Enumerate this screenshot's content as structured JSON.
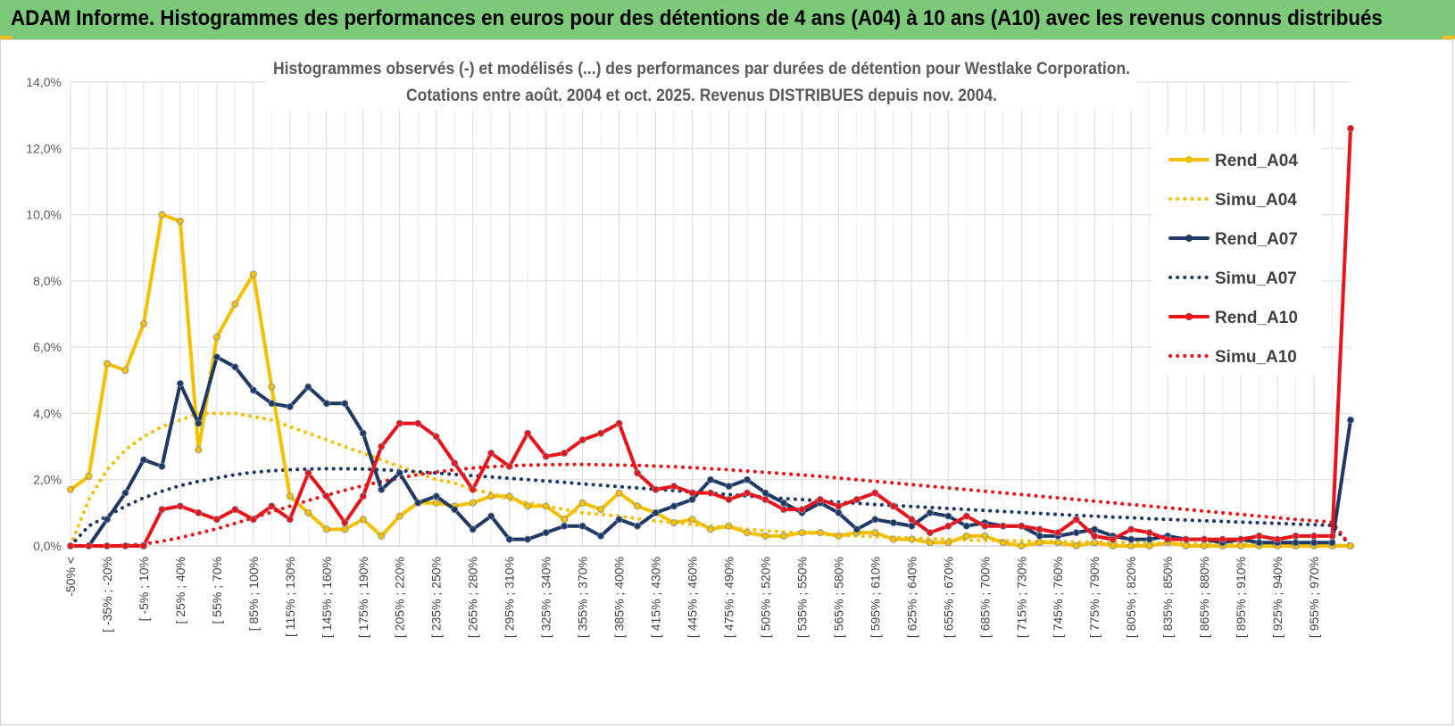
{
  "banner": {
    "title": "ADAM Informe. Histogrammes des performances en euros pour des détentions de 4 ans (A04) à 10 ans (A10) avec les revenus connus distribués",
    "color": "#7dc97a"
  },
  "chart_data": {
    "type": "line",
    "title": "Histogrammes observés (-) et modélisés (...) des performances par durées de détention pour Westlake Corporation.",
    "subtitle": "Cotations entre août. 2004 et oct. 2025. Revenus DISTRIBUES depuis nov. 2004.",
    "xlabel": "",
    "ylabel": "",
    "ylim": [
      0,
      14
    ],
    "y_ticks": [
      "0,0%",
      "2,0%",
      "4,0%",
      "6,0%",
      "8,0%",
      "10,0%",
      "12,0%",
      "14,0%"
    ],
    "grid": true,
    "legend_position": "right",
    "x_tick_labels": [
      "-50% <",
      "[ -35% ; -20%",
      "[ -5% ; 10%",
      "[ 25% ; 40%",
      "[ 55% ; 70%",
      "[ 85% ; 100%",
      "[ 115% ; 130%",
      "[ 145% ; 160%",
      "[ 175% ; 190%",
      "[ 205% ; 220%",
      "[ 235% ; 250%",
      "[ 265% ; 280%",
      "[ 295% ; 310%",
      "[ 325% ; 340%",
      "[ 355% ; 370%",
      "[ 385% ; 400%",
      "[ 415% ; 430%",
      "[ 445% ; 460%",
      "[ 475% ; 490%",
      "[ 505% ; 520%",
      "[ 535% ; 550%",
      "[ 565% ; 580%",
      "[ 595% ; 610%",
      "[ 625% ; 640%",
      "[ 655% ; 670%",
      "[ 685% ; 700%",
      "[ 715% ; 730%",
      "[ 745% ; 760%",
      "[ 775% ; 790%",
      "[ 805% ; 820%",
      "[ 835% ; 850%",
      "[ 865% ; 880%",
      "[ 895% ; 910%",
      "[ 925% ; 940%",
      "[ 955% ; 970%"
    ],
    "series": [
      {
        "name": "Rend_A04",
        "style": "solid",
        "marker": true,
        "color": "#f5c000",
        "values": [
          1.7,
          2.1,
          5.5,
          5.3,
          6.7,
          10.0,
          9.8,
          2.9,
          6.3,
          7.3,
          8.2,
          4.8,
          1.5,
          1.0,
          0.5,
          0.5,
          0.8,
          0.3,
          0.9,
          1.3,
          1.3,
          1.2,
          1.3,
          1.5,
          1.5,
          1.2,
          1.2,
          0.8,
          1.3,
          1.1,
          1.6,
          1.2,
          1.0,
          0.7,
          0.8,
          0.5,
          0.6,
          0.4,
          0.3,
          0.3,
          0.4,
          0.4,
          0.3,
          0.4,
          0.4,
          0.2,
          0.2,
          0.1,
          0.1,
          0.3,
          0.3,
          0.1,
          0.0,
          0.1,
          0.1,
          0.0,
          0.1,
          0.0,
          0.0,
          0.0,
          0.1,
          0.0,
          0.0,
          0.0,
          0.0,
          0.0,
          0.0,
          0.0,
          0.0,
          0.0,
          0.0
        ]
      },
      {
        "name": "Simu_A04",
        "style": "dotted",
        "marker": false,
        "color": "#f5c000",
        "values": [
          0.0,
          1.4,
          2.3,
          2.9,
          3.3,
          3.6,
          3.8,
          4.0,
          4.0,
          4.0,
          3.9,
          3.8,
          3.6,
          3.4,
          3.2,
          3.0,
          2.8,
          2.6,
          2.4,
          2.2,
          2.0,
          1.9,
          1.7,
          1.6,
          1.4,
          1.3,
          1.2,
          1.1,
          1.0,
          0.95,
          0.9,
          0.82,
          0.75,
          0.7,
          0.65,
          0.6,
          0.55,
          0.5,
          0.46,
          0.42,
          0.39,
          0.36,
          0.33,
          0.3,
          0.28,
          0.26,
          0.24,
          0.22,
          0.2,
          0.18,
          0.17,
          0.16,
          0.15,
          0.14,
          0.13,
          0.12,
          0.11,
          0.1,
          0.1,
          0.09,
          0.08,
          0.08,
          0.07,
          0.07,
          0.06,
          0.06,
          0.05,
          0.05,
          0.05,
          0.04,
          0.0
        ]
      },
      {
        "name": "Rend_A07",
        "style": "solid",
        "marker": true,
        "color": "#1f3864",
        "values": [
          0.0,
          0.0,
          0.8,
          1.6,
          2.6,
          2.4,
          4.9,
          3.7,
          5.7,
          5.4,
          4.7,
          4.3,
          4.2,
          4.8,
          4.3,
          4.3,
          3.4,
          1.7,
          2.2,
          1.3,
          1.5,
          1.1,
          0.5,
          0.9,
          0.2,
          0.2,
          0.4,
          0.6,
          0.6,
          0.3,
          0.8,
          0.6,
          1.0,
          1.2,
          1.4,
          2.0,
          1.8,
          2.0,
          1.6,
          1.3,
          1.0,
          1.3,
          1.0,
          0.5,
          0.8,
          0.7,
          0.6,
          1.0,
          0.9,
          0.6,
          0.7,
          0.6,
          0.6,
          0.3,
          0.3,
          0.4,
          0.5,
          0.3,
          0.2,
          0.2,
          0.3,
          0.2,
          0.2,
          0.1,
          0.2,
          0.1,
          0.1,
          0.1,
          0.1,
          0.1,
          3.8
        ]
      },
      {
        "name": "Simu_A07",
        "style": "dotted",
        "marker": false,
        "color": "#1f3864",
        "values": [
          0.0,
          0.6,
          0.9,
          1.2,
          1.45,
          1.65,
          1.82,
          1.95,
          2.05,
          2.15,
          2.22,
          2.27,
          2.3,
          2.32,
          2.33,
          2.33,
          2.32,
          2.3,
          2.27,
          2.24,
          2.2,
          2.16,
          2.12,
          2.08,
          2.04,
          2.0,
          1.96,
          1.92,
          1.87,
          1.83,
          1.79,
          1.75,
          1.71,
          1.67,
          1.63,
          1.59,
          1.55,
          1.51,
          1.47,
          1.43,
          1.4,
          1.36,
          1.32,
          1.29,
          1.25,
          1.22,
          1.19,
          1.16,
          1.13,
          1.1,
          1.07,
          1.04,
          1.01,
          0.98,
          0.95,
          0.92,
          0.9,
          0.87,
          0.85,
          0.82,
          0.8,
          0.78,
          0.76,
          0.74,
          0.72,
          0.7,
          0.68,
          0.66,
          0.64,
          0.62,
          0.0
        ]
      },
      {
        "name": "Rend_A10",
        "style": "solid",
        "marker": true,
        "color": "#e8141a",
        "values": [
          0.0,
          0.0,
          0.0,
          0.0,
          0.0,
          1.1,
          1.2,
          1.0,
          0.8,
          1.1,
          0.8,
          1.2,
          0.8,
          2.2,
          1.5,
          0.7,
          1.5,
          3.0,
          3.7,
          3.7,
          3.3,
          2.5,
          1.7,
          2.8,
          2.4,
          3.4,
          2.7,
          2.8,
          3.2,
          3.4,
          3.7,
          2.2,
          1.7,
          1.8,
          1.6,
          1.6,
          1.4,
          1.6,
          1.4,
          1.1,
          1.1,
          1.4,
          1.2,
          1.4,
          1.6,
          1.2,
          0.8,
          0.4,
          0.6,
          0.9,
          0.6,
          0.6,
          0.6,
          0.5,
          0.4,
          0.8,
          0.3,
          0.2,
          0.5,
          0.4,
          0.2,
          0.2,
          0.2,
          0.2,
          0.2,
          0.3,
          0.2,
          0.3,
          0.3,
          0.3,
          12.6
        ]
      },
      {
        "name": "Simu_A10",
        "style": "dotted",
        "marker": false,
        "color": "#e8141a",
        "values": [
          0.0,
          0.0,
          0.0,
          0.02,
          0.06,
          0.14,
          0.25,
          0.38,
          0.52,
          0.68,
          0.85,
          1.02,
          1.2,
          1.37,
          1.53,
          1.68,
          1.82,
          1.94,
          2.05,
          2.15,
          2.23,
          2.3,
          2.35,
          2.39,
          2.42,
          2.44,
          2.45,
          2.46,
          2.46,
          2.45,
          2.44,
          2.43,
          2.41,
          2.39,
          2.36,
          2.33,
          2.3,
          2.26,
          2.22,
          2.18,
          2.14,
          2.1,
          2.05,
          2.0,
          1.95,
          1.9,
          1.85,
          1.8,
          1.75,
          1.7,
          1.65,
          1.6,
          1.55,
          1.5,
          1.45,
          1.4,
          1.35,
          1.3,
          1.25,
          1.2,
          1.15,
          1.1,
          1.05,
          1.0,
          0.95,
          0.9,
          0.85,
          0.8,
          0.76,
          0.72,
          0.0
        ]
      }
    ]
  }
}
